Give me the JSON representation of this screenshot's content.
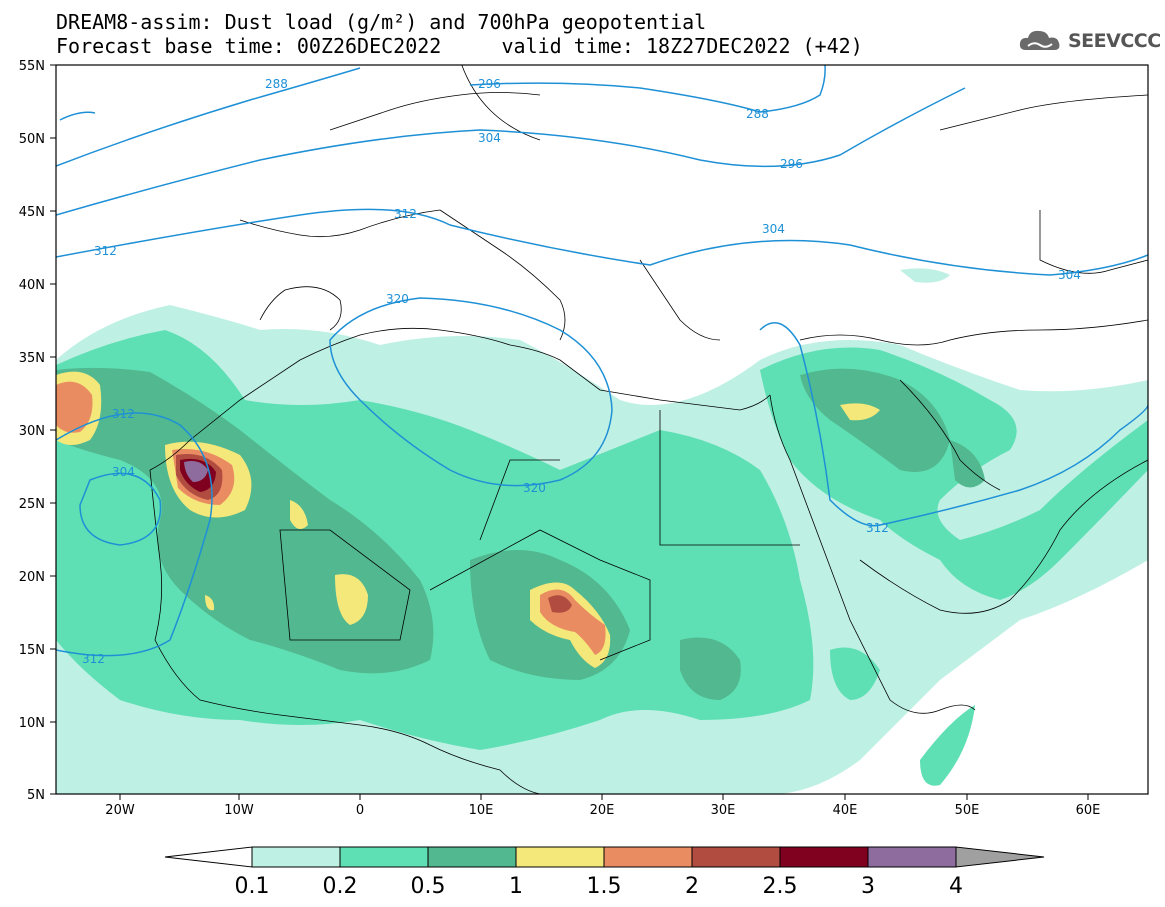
{
  "header": {
    "title_line1": "DREAM8-assim: Dust load (g/m²) and 700hPa geopotential",
    "title_line2": "Forecast base time: 00Z26DEC2022     valid time: 18Z27DEC2022 (+42)",
    "brand": "SEEVCCC",
    "brand_icon": "cloud-logo-icon"
  },
  "map": {
    "lat_labels": [
      "55N",
      "50N",
      "45N",
      "40N",
      "35N",
      "30N",
      "25N",
      "20N",
      "15N",
      "10N",
      "5N"
    ],
    "lon_labels": [
      "20W",
      "10W",
      "0",
      "10E",
      "20E",
      "30E",
      "40E",
      "50E",
      "60E"
    ],
    "contour_color": "#1e90d6",
    "contour_labels": [
      "288",
      "296",
      "288",
      "304",
      "296",
      "312",
      "304",
      "312",
      "320",
      "312",
      "304",
      "320",
      "312",
      "304",
      "312"
    ]
  },
  "colorbar": {
    "levels": [
      "0.1",
      "0.2",
      "0.5",
      "1",
      "1.5",
      "2",
      "2.5",
      "3",
      "4"
    ],
    "colors": [
      "#bff0e4",
      "#5fe0b4",
      "#52b890",
      "#f5e87a",
      "#ea8c62",
      "#b04c40",
      "#800020",
      "#8e6c9e",
      "#a0a0a0"
    ]
  }
}
